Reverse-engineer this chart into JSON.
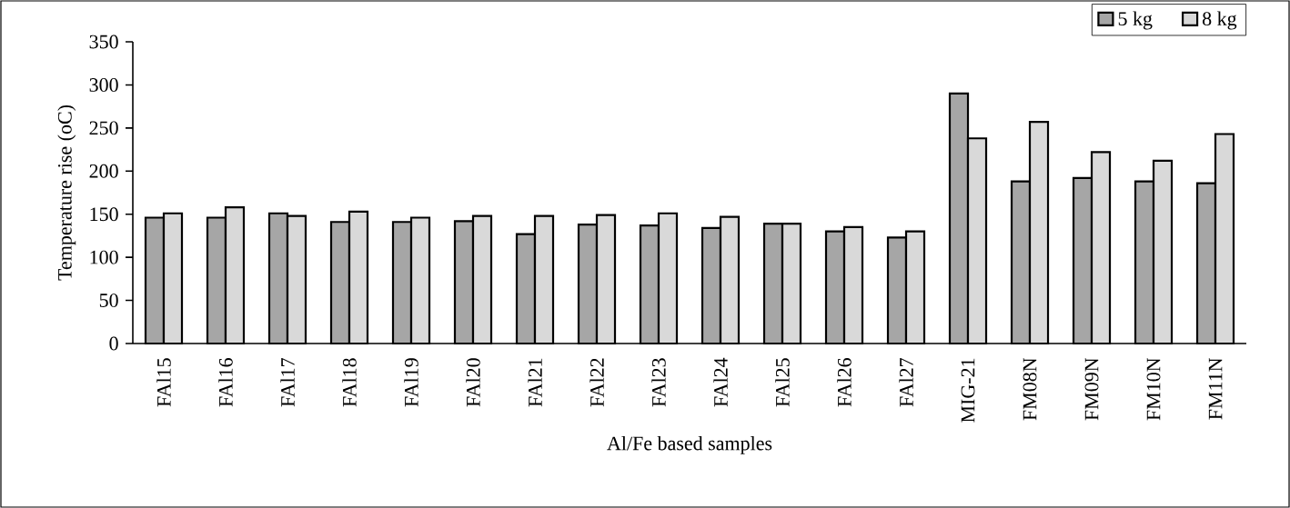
{
  "chart_data": {
    "type": "bar",
    "xlabel": "Al/Fe based samples",
    "ylabel": "Temperature rise (oC)",
    "categories": [
      "FAl15",
      "FAl16",
      "FAl17",
      "FAl18",
      "FAl19",
      "FAl20",
      "FAl21",
      "FAl22",
      "FAl23",
      "FAl24",
      "FAl25",
      "FAl26",
      "FAl27",
      "MIG-21",
      "FM08N",
      "FM09N",
      "FM10N",
      "FM11N"
    ],
    "series": [
      {
        "name": "5 kg",
        "color": "#a6a6a6",
        "values": [
          146,
          146,
          151,
          141,
          141,
          142,
          127,
          138,
          137,
          134,
          139,
          130,
          123,
          290,
          188,
          192,
          188,
          186
        ]
      },
      {
        "name": "8 kg",
        "color": "#d9d9d9",
        "values": [
          151,
          158,
          148,
          153,
          146,
          148,
          148,
          149,
          151,
          147,
          139,
          135,
          130,
          238,
          257,
          222,
          212,
          243
        ]
      }
    ],
    "ylim": [
      0,
      350
    ],
    "yticks": [
      0,
      50,
      100,
      150,
      200,
      250,
      300,
      350
    ],
    "grid": false,
    "legend": "top right"
  }
}
